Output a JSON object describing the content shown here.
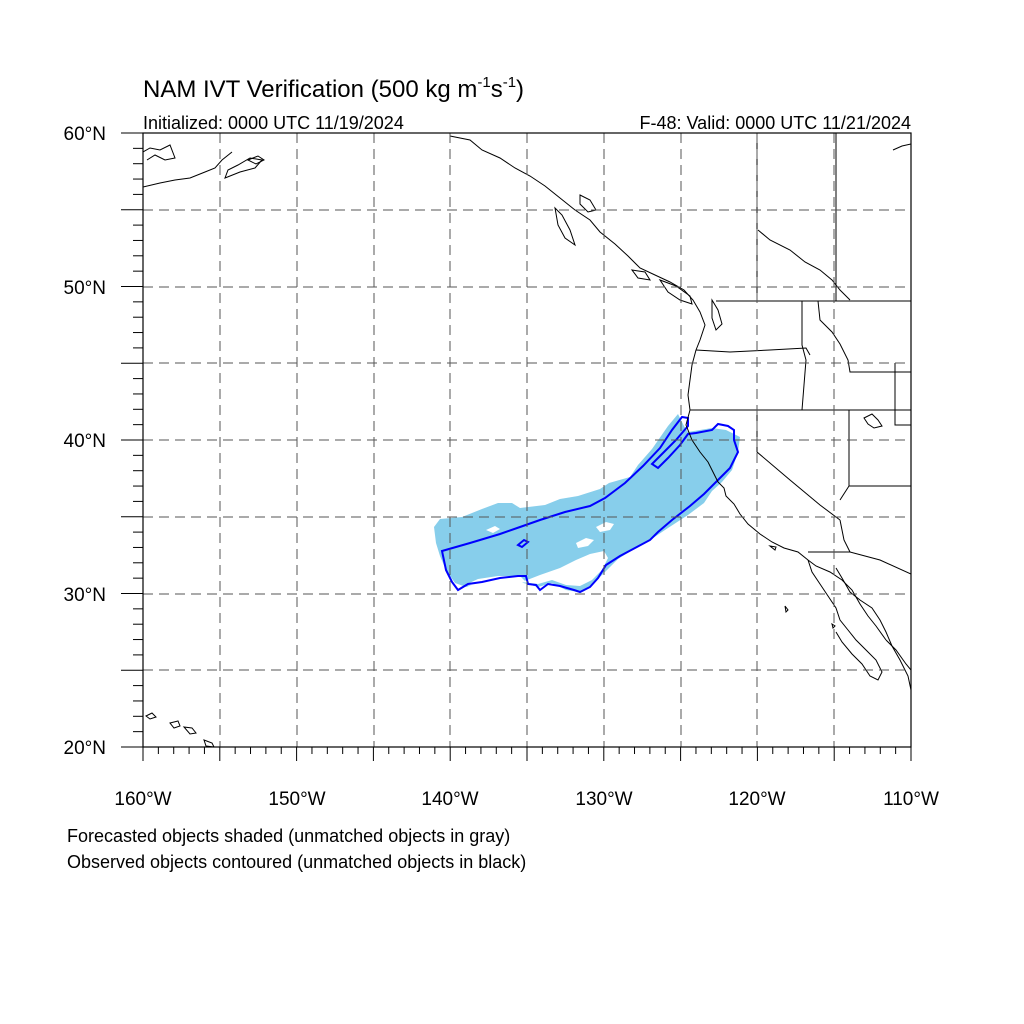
{
  "title": {
    "main": "NAM IVT Verification (500 kg m",
    "sup1": "-1",
    "mid": "s",
    "sup2": "-1",
    "end": ")"
  },
  "initialized": "Initialized: 0000 UTC 11/19/2024",
  "valid": "F-48: Valid: 0000 UTC 11/21/2024",
  "notes": {
    "forecast": "Forecasted objects shaded (unmatched objects in gray)",
    "observed": "Observed objects contoured (unmatched objects in black)"
  },
  "map": {
    "lon_range": [
      -160,
      -110
    ],
    "lat_range": [
      20,
      60
    ],
    "lon_ticks": [
      "160°W",
      "150°W",
      "140°W",
      "130°W",
      "120°W",
      "110°W"
    ],
    "lat_ticks": [
      "20°N",
      "30°N",
      "40°N",
      "50°N",
      "60°N"
    ],
    "grid": "dashed every 5°",
    "forecast_fill_color": "#87ceeb",
    "observed_contour_color": "#0000ff",
    "coastline_color": "#000000"
  }
}
